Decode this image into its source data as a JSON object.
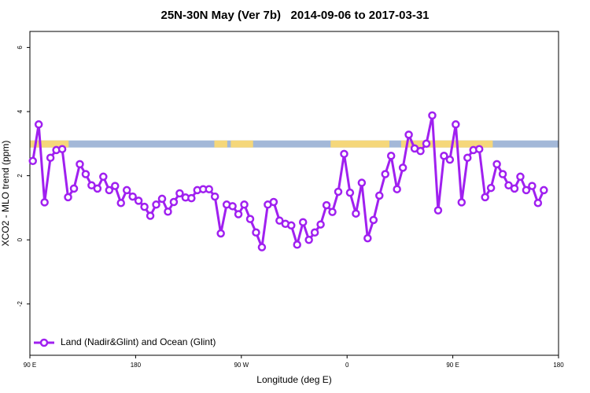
{
  "chart_data": {
    "type": "line",
    "title": "25N-30N May (Ver 7b)   2014-09-06 to 2017-03-31",
    "x_label": "Longitude (deg E)",
    "y_label": "XCO2 - MLO trend (ppm)",
    "xlim": [
      90,
      540
    ],
    "ylim": [
      -3.6,
      6.5
    ],
    "xticks": [
      {
        "value": 90,
        "label": "90 E"
      },
      180,
      {
        "value": 270,
        "label": "90 W"
      },
      {
        "value": 360,
        "label": "0"
      },
      {
        "value": 450,
        "label": "90 E"
      },
      {
        "value": 540,
        "label": "180"
      }
    ],
    "yticks": [
      -2,
      0,
      2,
      4,
      6
    ],
    "grid": false,
    "legend": "bottom-left",
    "surface_band": {
      "ylim": [
        2.88,
        3.1
      ],
      "ocean_color": "#a3b8d8",
      "land_color": "#f5d77a",
      "land": [
        [
          90,
          123
        ],
        [
          247,
          258
        ],
        [
          261,
          280
        ],
        [
          346,
          396
        ],
        [
          406,
          484
        ]
      ]
    },
    "x": [
      92.5,
      97.5,
      102.5,
      107.5,
      112.5,
      117.5,
      122.5,
      127.5,
      132.5,
      137.5,
      142.5,
      147.5,
      152.5,
      157.5,
      162.5,
      167.5,
      172.5,
      177.5,
      182.5,
      187.5,
      192.5,
      197.5,
      202.5,
      207.5,
      212.5,
      217.5,
      222.5,
      227.5,
      232.5,
      237.5,
      242.5,
      247.5,
      252.5,
      257.5,
      262.5,
      267.5,
      272.5,
      277.5,
      282.5,
      287.5,
      292.5,
      297.5,
      302.5,
      307.5,
      312.5,
      317.5,
      322.5,
      327.5,
      332.5,
      337.5,
      342.5,
      347.5,
      352.5,
      357.5,
      362.5,
      367.5,
      372.5,
      377.5,
      382.5,
      387.5,
      392.5,
      397.5,
      402.5,
      407.5,
      412.5,
      417.5,
      422.5,
      427.5,
      432.5,
      437.5,
      442.5,
      447.5,
      452.5,
      457.5,
      462.5,
      467.5,
      472.5,
      477.5,
      482.5,
      487.5,
      492.5,
      497.5,
      502.5,
      507.5,
      512.5,
      517.5,
      522.5,
      527.5
    ],
    "series": [
      {
        "name": "Land (Nadir&Glint) and Ocean (Glint)",
        "color": "#a020f0",
        "values": [
          2.46,
          3.6,
          1.17,
          2.56,
          2.8,
          2.83,
          1.33,
          1.6,
          2.36,
          2.05,
          1.7,
          1.6,
          1.97,
          1.55,
          1.68,
          1.15,
          1.55,
          1.35,
          1.22,
          1.03,
          0.75,
          1.1,
          1.28,
          0.88,
          1.18,
          1.45,
          1.32,
          1.3,
          1.55,
          1.58,
          1.58,
          1.35,
          0.2,
          1.1,
          1.05,
          0.8,
          1.1,
          0.65,
          0.23,
          -0.23,
          1.1,
          1.18,
          0.6,
          0.5,
          0.45,
          -0.15,
          0.55,
          0,
          0.23,
          0.48,
          1.08,
          0.87,
          1.5,
          2.68,
          1.47,
          0.82,
          1.78,
          0.05,
          0.62,
          1.38,
          2.05,
          2.62,
          1.58,
          2.25,
          3.28,
          2.85,
          2.77,
          3.0,
          3.88,
          0.92,
          2.62,
          2.5,
          3.6,
          1.17,
          2.56,
          2.8,
          2.83,
          1.33,
          1.62,
          2.36,
          2.05,
          1.7,
          1.6,
          1.97,
          1.55,
          1.68,
          1.15,
          1.55
        ]
      }
    ]
  }
}
